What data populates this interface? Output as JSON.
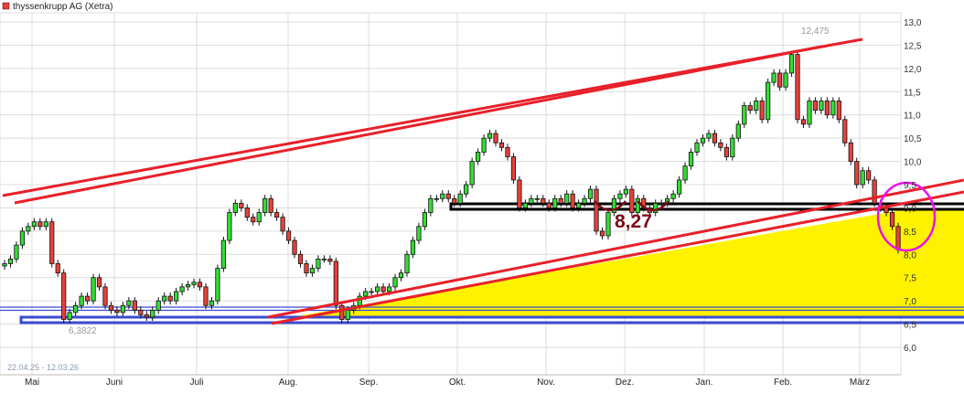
{
  "legend": {
    "label": "thyssenkrupp AG (Xetra)",
    "color": "#e8403a"
  },
  "chart_data": {
    "type": "candlestick",
    "title": "thyssenkrupp AG (Xetra)",
    "date_range": "22.04.25 - 12.03.26",
    "ylim": [
      6.0,
      13.0
    ],
    "yticks": [
      "13,0",
      "12,5",
      "12,0",
      "11,5",
      "11,0",
      "10,5",
      "10,0",
      "9,5",
      "9,0",
      "8,5",
      "8,0",
      "7,5",
      "7,0",
      "6,5",
      "6,0"
    ],
    "months": [
      "Mai",
      "Juni",
      "Juli",
      "Aug.",
      "Sep.",
      "Okt.",
      "Nov.",
      "Dez.",
      "Jan.",
      "Feb.",
      "März"
    ],
    "grid": true,
    "up_color": "#33dd33",
    "down_color": "#e8403a",
    "close": [
      7.8,
      7.9,
      8.2,
      8.5,
      8.6,
      8.7,
      8.6,
      8.7,
      7.8,
      7.6,
      6.6,
      6.75,
      6.9,
      7.1,
      7.0,
      7.5,
      7.3,
      6.9,
      6.8,
      6.75,
      6.9,
      7.0,
      6.8,
      6.7,
      6.65,
      6.8,
      7.0,
      7.1,
      7.0,
      7.2,
      7.3,
      7.35,
      7.4,
      7.3,
      6.9,
      7.0,
      7.7,
      8.3,
      8.9,
      9.1,
      9.0,
      8.8,
      8.7,
      8.9,
      9.2,
      8.9,
      8.8,
      8.5,
      8.3,
      8.0,
      7.8,
      7.6,
      7.7,
      7.9,
      7.9,
      7.85,
      6.9,
      6.6,
      6.8,
      6.9,
      7.1,
      7.2,
      7.2,
      7.3,
      7.2,
      7.3,
      7.5,
      7.6,
      8.0,
      8.3,
      8.6,
      8.9,
      9.2,
      9.2,
      9.3,
      9.2,
      9.1,
      9.3,
      9.5,
      10.0,
      10.2,
      10.5,
      10.6,
      10.4,
      10.3,
      10.1,
      9.6,
      9.0,
      9.1,
      9.2,
      9.2,
      9.1,
      9.0,
      9.2,
      9.1,
      9.3,
      9.0,
      9.1,
      9.2,
      9.4,
      8.5,
      8.4,
      8.9,
      9.2,
      9.3,
      9.4,
      8.9,
      9.2,
      9.0,
      8.9,
      9.1,
      9.1,
      9.2,
      9.3,
      9.6,
      9.9,
      10.2,
      10.4,
      10.5,
      10.6,
      10.4,
      10.3,
      10.1,
      10.5,
      10.8,
      11.2,
      11.1,
      11.3,
      10.9,
      11.7,
      11.9,
      11.6,
      11.9,
      12.3,
      10.9,
      10.8,
      11.3,
      11.1,
      11.3,
      11.0,
      11.3,
      10.9,
      10.4,
      10.0,
      9.5,
      9.8,
      9.6,
      9.1,
      9.0,
      8.9,
      8.6,
      8.1
    ],
    "annotations": {
      "high_label": "12,475",
      "low_label": "6,3822",
      "support_label": "8,27",
      "support_level": 8.27
    }
  }
}
